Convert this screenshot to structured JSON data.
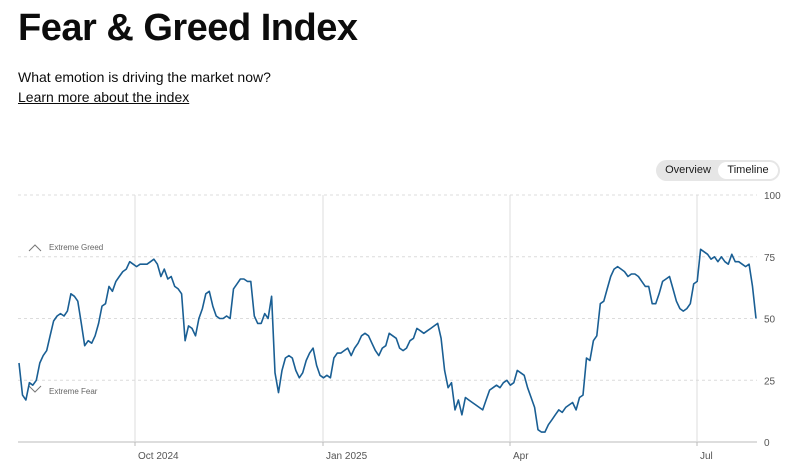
{
  "header": {
    "title": "Fear & Greed Index",
    "subtitle": "What emotion is driving the market now?",
    "learn_more": "Learn more about the index"
  },
  "toggle": {
    "overview": "Overview",
    "timeline": "Timeline",
    "active": "timeline"
  },
  "colors": {
    "line": "#1a5f94",
    "grid": "#dcdcdc",
    "axis": "#bbbbbb"
  },
  "chart_data": {
    "type": "line",
    "zones": [
      {
        "label": "Extreme Greed",
        "icon": "chevron-up-icon"
      },
      {
        "label": "Extreme Fear",
        "icon": "chevron-down-icon"
      }
    ],
    "x_ticks": [
      "Oct 2024",
      "Jan 2025",
      "Apr",
      "Jul"
    ],
    "y_ticks": [
      0,
      25,
      50,
      75,
      100
    ],
    "ylim": [
      0,
      100
    ],
    "grid": true,
    "series": [
      {
        "values": [
          32,
          19,
          17,
          24,
          23,
          25,
          32,
          35,
          37,
          43,
          49,
          51,
          52,
          51,
          53,
          60,
          59,
          57,
          48,
          39,
          41,
          40,
          43,
          48,
          55,
          56,
          63,
          61,
          65,
          67,
          69,
          70,
          73,
          72,
          71,
          72,
          72,
          72,
          73,
          74,
          72,
          67,
          70,
          66,
          67,
          63,
          62,
          60,
          41,
          47,
          46,
          43,
          50,
          54,
          60,
          61,
          55,
          51,
          50,
          50,
          51,
          50,
          62,
          64,
          66,
          66,
          65,
          65,
          51,
          48,
          48,
          52,
          50,
          59,
          28,
          20,
          29,
          34,
          35,
          34,
          29,
          26,
          28,
          33,
          36,
          38,
          31,
          27,
          26,
          27,
          26,
          34,
          36,
          36,
          37,
          38,
          35,
          38,
          40,
          43,
          44,
          43,
          40,
          37,
          35,
          38,
          39,
          44,
          43,
          42,
          38,
          37,
          38,
          41,
          42,
          46,
          45,
          44,
          45,
          46,
          47,
          48,
          42,
          29,
          22,
          24,
          13,
          17,
          11,
          18,
          17,
          16,
          15,
          14,
          13,
          17,
          21,
          22,
          23,
          22,
          24,
          25,
          23,
          24,
          29,
          28,
          27,
          22,
          18,
          14,
          5,
          4,
          4,
          7,
          9,
          11,
          13,
          12,
          14,
          15,
          16,
          13,
          18,
          19,
          34,
          33,
          41,
          43,
          56,
          57,
          62,
          67,
          70,
          71,
          70,
          69,
          67,
          68,
          68,
          67,
          65,
          63,
          63,
          56,
          56,
          60,
          65,
          66,
          67,
          62,
          57,
          54,
          53,
          54,
          56,
          64,
          65,
          78,
          77,
          76,
          74,
          75,
          73,
          75,
          73,
          72,
          76,
          73,
          73,
          72,
          71,
          72,
          63,
          50
        ]
      }
    ]
  }
}
